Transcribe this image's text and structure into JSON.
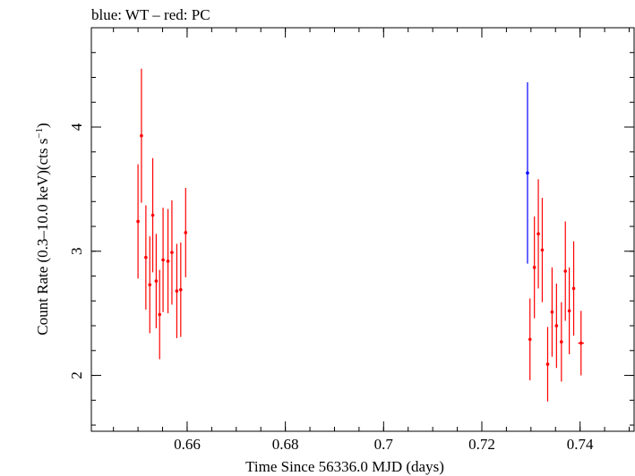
{
  "chart_data": {
    "type": "scatter",
    "title": "blue: WT – red: PC",
    "xlabel": "Time Since 56336.0 MJD (days)",
    "ylabel_main": "Count Rate (0.3–10.0 keV)(cts s",
    "ylabel_sup": "−1",
    "ylabel_close": ")",
    "xlim": [
      0.6405,
      0.751
    ],
    "ylim": [
      1.55,
      4.8
    ],
    "x_ticks": [
      0.66,
      0.68,
      0.7,
      0.72,
      0.74
    ],
    "x_tick_labels": [
      "0.66",
      "0.68",
      "0.7",
      "0.72",
      "0.74"
    ],
    "x_minor_step": 0.005,
    "y_ticks": [
      2,
      3,
      4
    ],
    "y_tick_labels": [
      "2",
      "3",
      "4"
    ],
    "y_minor_step": 0.2,
    "grid": false,
    "colors": {
      "WT": "#0000ff",
      "PC": "#ff0000"
    },
    "series": [
      {
        "key": "PC",
        "color": "#ff0000",
        "points": [
          {
            "x": 0.65,
            "y": 3.24,
            "err": 0.46,
            "xerr": 0.0002
          },
          {
            "x": 0.6507,
            "y": 3.93,
            "err": 0.54,
            "xerr": 0.0002
          },
          {
            "x": 0.6516,
            "y": 2.95,
            "err": 0.42,
            "xerr": 0.0002
          },
          {
            "x": 0.6524,
            "y": 2.73,
            "err": 0.39,
            "xerr": 0.0002
          },
          {
            "x": 0.653,
            "y": 3.29,
            "err": 0.46,
            "xerr": 0.0002
          },
          {
            "x": 0.6537,
            "y": 2.76,
            "err": 0.38,
            "xerr": 0.0002
          },
          {
            "x": 0.6544,
            "y": 2.49,
            "err": 0.36,
            "xerr": 0.0002
          },
          {
            "x": 0.6551,
            "y": 2.93,
            "err": 0.42,
            "xerr": 0.0002
          },
          {
            "x": 0.6561,
            "y": 2.92,
            "err": 0.42,
            "xerr": 0.0003
          },
          {
            "x": 0.6569,
            "y": 2.99,
            "err": 0.42,
            "xerr": 0.0002
          },
          {
            "x": 0.6579,
            "y": 2.68,
            "err": 0.38,
            "xerr": 0.0002
          },
          {
            "x": 0.6587,
            "y": 2.69,
            "err": 0.38,
            "xerr": 0.0002
          },
          {
            "x": 0.6597,
            "y": 3.15,
            "err": 0.36,
            "xerr": 0.0003
          },
          {
            "x": 0.7298,
            "y": 2.29,
            "err": 0.33,
            "xerr": 0.0002
          },
          {
            "x": 0.7307,
            "y": 2.87,
            "err": 0.41,
            "xerr": 0.0002
          },
          {
            "x": 0.7315,
            "y": 3.14,
            "err": 0.44,
            "xerr": 0.0002
          },
          {
            "x": 0.7323,
            "y": 3.01,
            "err": 0.42,
            "xerr": 0.0002
          },
          {
            "x": 0.7334,
            "y": 2.09,
            "err": 0.3,
            "xerr": 0.0003
          },
          {
            "x": 0.7343,
            "y": 2.51,
            "err": 0.36,
            "xerr": 0.0002
          },
          {
            "x": 0.7352,
            "y": 2.4,
            "err": 0.34,
            "xerr": 0.0003
          },
          {
            "x": 0.7362,
            "y": 2.27,
            "err": 0.32,
            "xerr": 0.0003
          },
          {
            "x": 0.737,
            "y": 2.84,
            "err": 0.4,
            "xerr": 0.0002
          },
          {
            "x": 0.7378,
            "y": 2.52,
            "err": 0.35,
            "xerr": 0.0002
          },
          {
            "x": 0.7387,
            "y": 2.7,
            "err": 0.38,
            "xerr": 0.0002
          },
          {
            "x": 0.7402,
            "y": 2.26,
            "err": 0.26,
            "xerr": 0.0006
          }
        ]
      },
      {
        "key": "WT",
        "color": "#0000ff",
        "points": [
          {
            "x": 0.7293,
            "y": 3.63,
            "err": 0.73,
            "xerr": 0.0001
          }
        ]
      }
    ]
  }
}
